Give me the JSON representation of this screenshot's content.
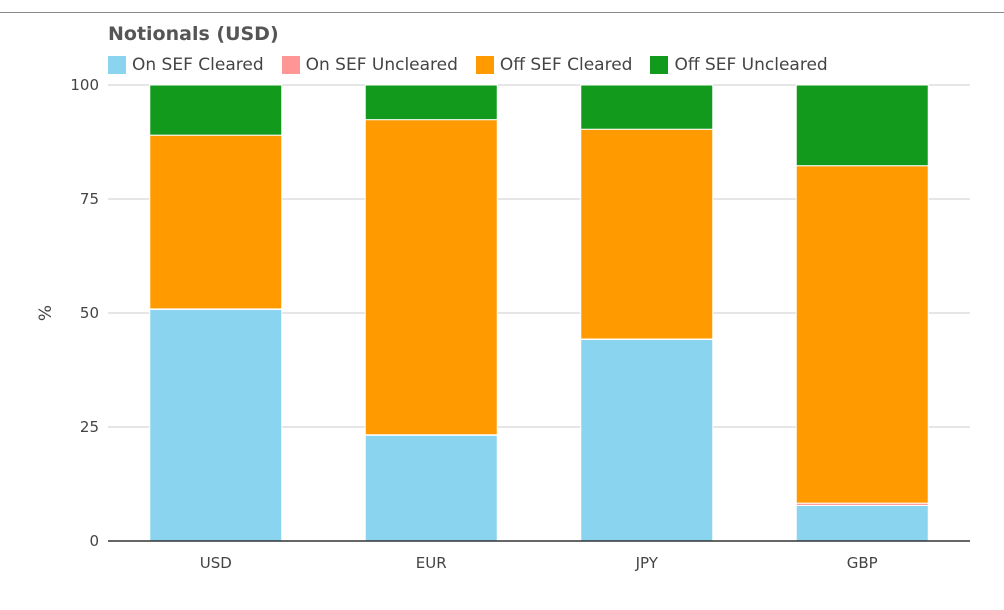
{
  "chart_data": {
    "type": "bar",
    "stacked": true,
    "title": "Notionals (USD)",
    "xlabel": "",
    "ylabel": "%",
    "ylim": [
      0,
      100
    ],
    "yticks": [
      0,
      25,
      50,
      75,
      100
    ],
    "grid": true,
    "legend_position": "top-left",
    "categories": [
      "USD",
      "EUR",
      "JPY",
      "GBP"
    ],
    "series": [
      {
        "name": "On SEF Cleared",
        "color": "#8ad4ef",
        "values": [
          50.8,
          23.2,
          44.2,
          7.8
        ]
      },
      {
        "name": "On SEF Uncleared",
        "color": "#ff9696",
        "values": [
          0.1,
          0.1,
          0.1,
          0.5
        ]
      },
      {
        "name": "Off SEF Cleared",
        "color": "#ff9a00",
        "values": [
          38.1,
          69.1,
          46.0,
          74.0
        ]
      },
      {
        "name": "Off SEF Uncleared",
        "color": "#129a1c",
        "values": [
          11.0,
          7.6,
          9.7,
          17.7
        ]
      }
    ]
  }
}
